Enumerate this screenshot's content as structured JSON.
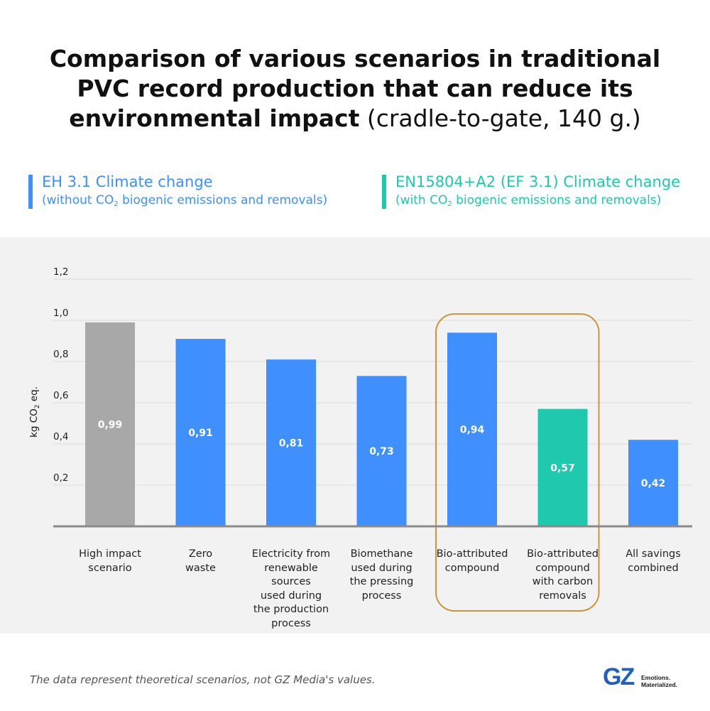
{
  "title": {
    "bold": "Comparison of various scenarios in traditional PVC record production that can reduce its environmental impact",
    "normal": " (cradle-to-gate, 140 g.)"
  },
  "legend": [
    {
      "main": "EH 3.1 Climate change",
      "sub_before": "(without CO",
      "sub_subscript": "2",
      "sub_after": " biogenic emissions and removals)",
      "color": "#3f8fff"
    },
    {
      "main": "EN15804+A2 (EF 3.1) Climate change",
      "sub_before": "(with CO",
      "sub_subscript": "2",
      "sub_after": " biogenic emissions and removals)",
      "color": "#1ec9ad"
    }
  ],
  "chart_data": {
    "type": "bar",
    "ylabel": "kg CO2 eq.",
    "ylim": [
      0,
      1.2
    ],
    "yticks": [
      "0,2",
      "0,4",
      "0,6",
      "0,8",
      "1,0",
      "1,2"
    ],
    "ytick_values": [
      0.2,
      0.4,
      0.6,
      0.8,
      1.0,
      1.2
    ],
    "categories": [
      "High impact scenario",
      "Zero waste",
      "Electricity from renewable sources used during the production process",
      "Biomethane used during the pressing process",
      "Bio-attributed compound",
      "Bio-attributed compound with carbon removals",
      "All savings combined"
    ],
    "category_lines": [
      [
        "High impact",
        "scenario"
      ],
      [
        "Zero",
        "waste"
      ],
      [
        "Electricity from",
        "renewable sources",
        "used during",
        "the production",
        "process"
      ],
      [
        "Biomethane",
        "used during",
        "the pressing",
        "process"
      ],
      [
        "Bio-attributed",
        "compound"
      ],
      [
        "Bio-attributed",
        "compound",
        "with carbon",
        "removals"
      ],
      [
        "All savings",
        "combined"
      ]
    ],
    "values": [
      0.99,
      0.91,
      0.81,
      0.73,
      0.94,
      0.57,
      0.42
    ],
    "value_labels": [
      "0,99",
      "0,91",
      "0,81",
      "0,73",
      "0,94",
      "0,57",
      "0,42"
    ],
    "bar_colors": [
      "#a8a8a8",
      "#3f8fff",
      "#3f8fff",
      "#3f8fff",
      "#3f8fff",
      "#1ec9ad",
      "#3f8fff"
    ],
    "highlight": {
      "from_index": 4,
      "to_index": 5,
      "color": "#c9963a"
    },
    "grid": true
  },
  "footnote": "The data represent theoretical scenarios, not GZ Media's values.",
  "logo": {
    "mark": "GZ",
    "tagline_1": "Emotions.",
    "tagline_2": "Materialized.",
    "color": "#1e5fc2"
  }
}
